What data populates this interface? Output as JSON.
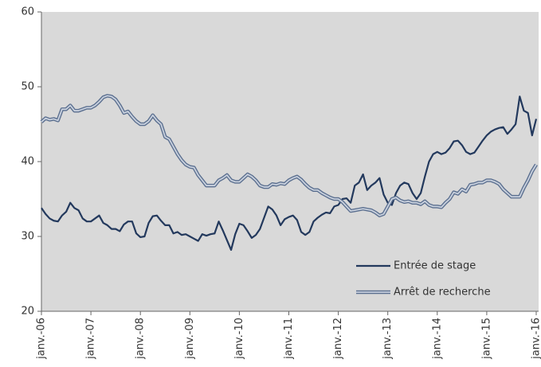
{
  "chart_data": {
    "type": "line",
    "categories": [
      "janv.-06",
      null,
      null,
      null,
      null,
      null,
      null,
      null,
      null,
      null,
      null,
      null,
      "janv.-07",
      null,
      null,
      null,
      null,
      null,
      null,
      null,
      null,
      null,
      null,
      null,
      "janv.-08",
      null,
      null,
      null,
      null,
      null,
      null,
      null,
      null,
      null,
      null,
      null,
      "janv.-09",
      null,
      null,
      null,
      null,
      null,
      null,
      null,
      null,
      null,
      null,
      null,
      "janv.-10",
      null,
      null,
      null,
      null,
      null,
      null,
      null,
      null,
      null,
      null,
      null,
      "janv.-11",
      null,
      null,
      null,
      null,
      null,
      null,
      null,
      null,
      null,
      null,
      null,
      "janv.-12",
      null,
      null,
      null,
      null,
      null,
      null,
      null,
      null,
      null,
      null,
      null,
      "janv.-13",
      null,
      null,
      null,
      null,
      null,
      null,
      null,
      null,
      null,
      null,
      null,
      "janv.-14",
      null,
      null,
      null,
      null,
      null,
      null,
      null,
      null,
      null,
      null,
      null,
      "janv.-15",
      null,
      null,
      null,
      null,
      null,
      null,
      null,
      null,
      null,
      null,
      null,
      "janv.-16"
    ],
    "series": [
      {
        "name": "Entrée de stage",
        "color": "#23395d",
        "values": [
          33.8,
          33.0,
          32.4,
          32.1,
          32.0,
          32.8,
          33.3,
          34.5,
          33.8,
          33.5,
          32.4,
          32.0,
          32.0,
          32.4,
          32.8,
          31.8,
          31.5,
          31.0,
          31.0,
          30.7,
          31.6,
          32.0,
          32.0,
          30.4,
          29.9,
          30.0,
          31.8,
          32.7,
          32.8,
          32.1,
          31.5,
          31.5,
          30.4,
          30.6,
          30.2,
          30.3,
          30.0,
          29.7,
          29.4,
          30.3,
          30.1,
          30.3,
          30.4,
          32.0,
          30.8,
          29.5,
          28.2,
          30.3,
          31.7,
          31.5,
          30.7,
          29.8,
          30.2,
          31.0,
          32.5,
          34.0,
          33.6,
          32.8,
          31.5,
          32.3,
          32.6,
          32.8,
          32.2,
          30.6,
          30.2,
          30.6,
          32.0,
          32.5,
          32.9,
          33.2,
          33.1,
          34.0,
          34.2,
          35.0,
          35.1,
          34.5,
          36.8,
          37.2,
          38.3,
          36.2,
          36.8,
          37.2,
          37.8,
          35.6,
          34.5,
          34.2,
          35.8,
          36.8,
          37.2,
          37.0,
          35.8,
          35.0,
          35.8,
          38.0,
          40.0,
          41.0,
          41.3,
          41.0,
          41.2,
          41.8,
          42.7,
          42.8,
          42.2,
          41.3,
          41.0,
          41.2,
          42.0,
          42.8,
          43.5,
          44.0,
          44.3,
          44.5,
          44.6,
          43.7,
          44.3,
          45.0,
          48.7,
          46.8,
          46.5,
          43.5,
          45.7
        ]
      },
      {
        "name": "Arrêt de recherche",
        "color": "#5b6f8f",
        "values": [
          45.3,
          45.8,
          45.6,
          45.7,
          45.5,
          47.0,
          47.0,
          47.5,
          46.8,
          46.8,
          47.0,
          47.2,
          47.2,
          47.5,
          48.0,
          48.6,
          48.8,
          48.7,
          48.3,
          47.5,
          46.5,
          46.7,
          46.0,
          45.4,
          45.0,
          45.0,
          45.4,
          46.2,
          45.5,
          45.0,
          43.3,
          43.0,
          42.0,
          41.0,
          40.2,
          39.6,
          39.3,
          39.2,
          38.2,
          37.5,
          36.8,
          36.8,
          36.8,
          37.5,
          37.8,
          38.2,
          37.5,
          37.3,
          37.3,
          37.8,
          38.3,
          38.0,
          37.5,
          36.8,
          36.6,
          36.6,
          37.0,
          36.9,
          37.1,
          37.0,
          37.5,
          37.8,
          38.0,
          37.6,
          37.0,
          36.5,
          36.2,
          36.2,
          35.8,
          35.5,
          35.2,
          35.0,
          35.0,
          34.6,
          34.0,
          33.4,
          33.5,
          33.6,
          33.7,
          33.6,
          33.5,
          33.2,
          32.8,
          33.0,
          34.0,
          35.0,
          35.2,
          34.8,
          34.6,
          34.7,
          34.5,
          34.5,
          34.3,
          34.7,
          34.2,
          34.0,
          34.0,
          33.9,
          34.5,
          35.0,
          35.9,
          35.7,
          36.3,
          36.0,
          36.9,
          37.0,
          37.2,
          37.2,
          37.5,
          37.5,
          37.3,
          37.0,
          36.3,
          35.8,
          35.3,
          35.3,
          35.3,
          36.5,
          37.5,
          38.7,
          39.6
        ]
      }
    ],
    "ylim": [
      20,
      60
    ],
    "yticks": [
      20,
      30,
      40,
      50,
      60
    ],
    "legend": "lower right",
    "background": "#d9d9d9"
  }
}
